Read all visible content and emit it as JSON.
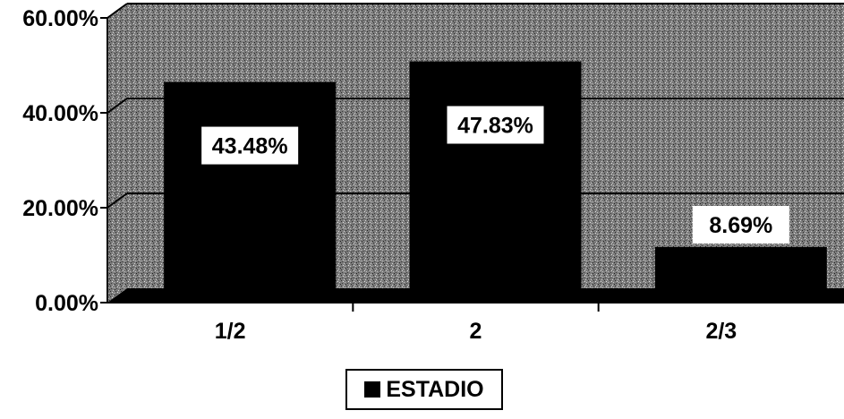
{
  "chart_data": {
    "type": "bar",
    "categories": [
      "1/2",
      "2",
      "2/3"
    ],
    "series": [
      {
        "name": "ESTADIO",
        "values": [
          43.48,
          47.83,
          8.69
        ]
      }
    ],
    "data_labels": [
      "43.48%",
      "47.83%",
      "8.69%"
    ],
    "y_ticks": [
      "0.00%",
      "20.00%",
      "40.00%",
      "60.00%"
    ],
    "ylim": [
      0,
      60
    ],
    "grid": true,
    "legend": "bottom-center",
    "title": "",
    "xlabel": "",
    "ylabel": "",
    "colors": {
      "bar": "#000000",
      "wall": "#8a8a8a",
      "floor": "#000000"
    }
  },
  "legend": {
    "label": "ESTADIO"
  }
}
